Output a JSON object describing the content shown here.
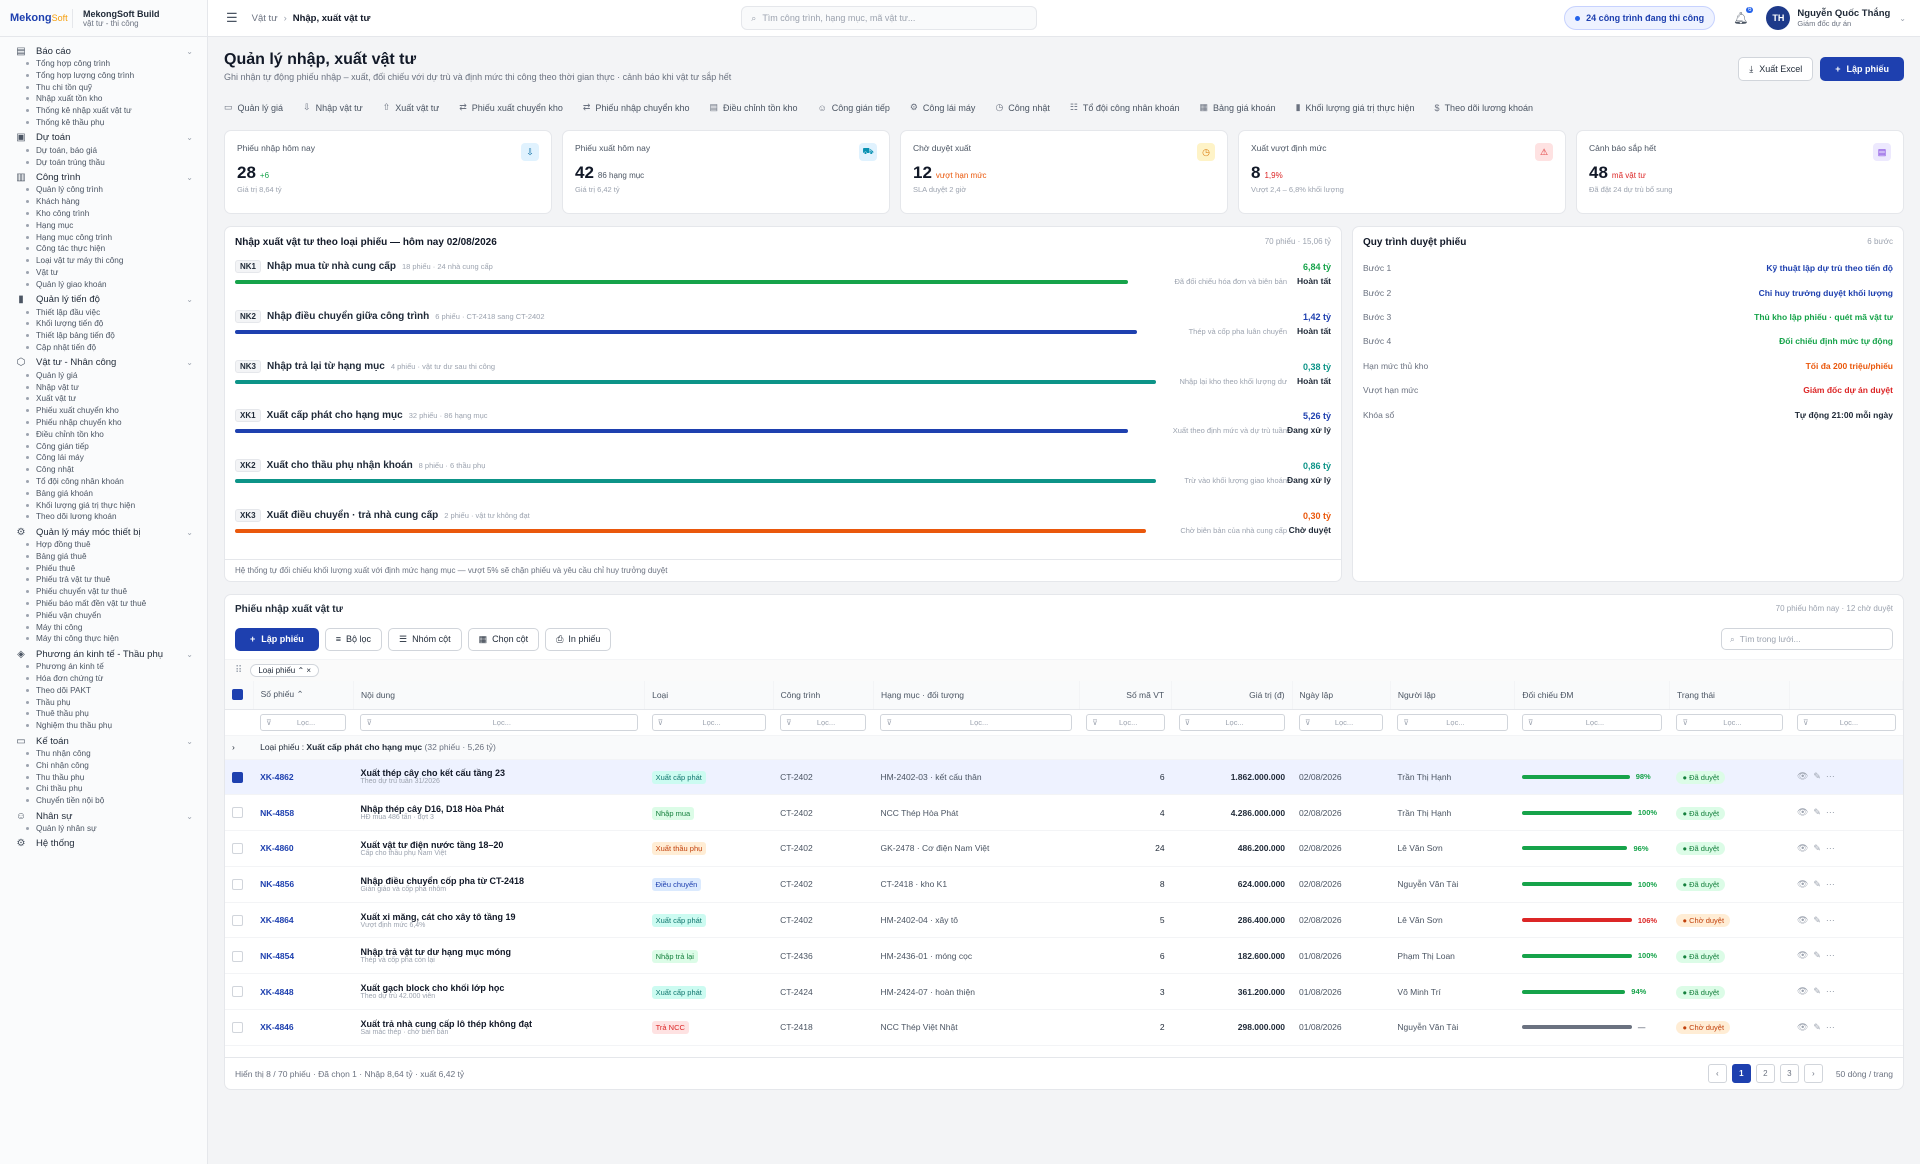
{
  "brand": {
    "logo_main": "Mekong",
    "logo_soft": "Soft",
    "name": "MekongSoft Build",
    "sub": "vật tư - thi công"
  },
  "colors": {
    "primary": "#1e40af",
    "green": "#16a34a",
    "blue": "#1e40af",
    "teal": "#0d9488",
    "orange": "#ea580c",
    "red": "#dc2626",
    "gray": "#6b7280"
  },
  "sidebar": [
    {
      "icon": "report-icon",
      "label": "Báo cáo",
      "items": [
        "Tổng hợp công trình",
        "Tổng hợp lượng công trình",
        "Thu chi tồn quỹ",
        "Nhập xuất tồn kho",
        "Thống kê nhập xuất vật tư",
        "Thống kê thầu phụ"
      ]
    },
    {
      "icon": "estimate-icon",
      "label": "Dự toán",
      "items": [
        "Dự toán, báo giá",
        "Dự toán trúng thầu"
      ]
    },
    {
      "icon": "project-icon",
      "label": "Công trình",
      "items": [
        "Quản lý công trình",
        "Khách hàng",
        "Kho công trình",
        "Hạng mục",
        "Hạng mục công trình",
        "Công tác thực hiện",
        "Loại vật tư máy thi công",
        "Vật tư",
        "Quản lý giao khoán"
      ]
    },
    {
      "icon": "progress-icon",
      "label": "Quản lý tiến độ",
      "items": [
        "Thiết lập đầu việc",
        "Khối lượng tiến độ",
        "Thiết lập bảng tiến độ",
        "Cập nhật tiến độ"
      ]
    },
    {
      "icon": "material-icon",
      "label": "Vật tư - Nhân công",
      "items": [
        "Quản lý giá",
        "Nhập vật tư",
        "Xuất vật tư",
        "Phiếu xuất chuyển kho",
        "Phiếu nhập chuyển kho",
        "Điều chỉnh tồn kho",
        "Công gián tiếp",
        "Công lái máy",
        "Công nhật",
        "Tổ đội công nhân khoán",
        "Bảng giá khoán",
        "Khối lượng giá trị thực hiện",
        "Theo dõi lương khoán"
      ]
    },
    {
      "icon": "machine-icon",
      "label": "Quản lý máy móc thiết bị",
      "items": [
        "Hợp đồng thuê",
        "Bảng giá thuê",
        "Phiếu thuê",
        "Phiếu trả vật tư thuê",
        "Phiếu chuyển vật tư thuê",
        "Phiếu báo mất đền vật tư thuê",
        "Phiếu vận chuyển",
        "Máy thi công",
        "Máy thi công thực hiện"
      ]
    },
    {
      "icon": "tag-icon",
      "label": "Phương án kinh tế - Thầu phụ",
      "items": [
        "Phương án kinh tế",
        "Hóa đơn chứng từ",
        "Theo dõi PAKT",
        "Thầu phụ",
        "Thuê thầu phụ",
        "Nghiệm thu thầu phụ"
      ]
    },
    {
      "icon": "money-icon",
      "label": "Kế toán",
      "items": [
        "Thu nhận công",
        "Chi nhận công",
        "Thu thầu phụ",
        "Chi thầu phụ",
        "Chuyển tiền nội bộ"
      ]
    },
    {
      "icon": "people-icon",
      "label": "Nhân sự",
      "items": [
        "Quản lý nhân sự"
      ]
    },
    {
      "icon": "gear-icon",
      "label": "Hệ thống",
      "items": []
    }
  ],
  "topbar": {
    "crumb1": "Vật tư",
    "crumb2": "Nhập, xuất vật tư",
    "search_placeholder": "Tìm công trình, hạng mục, mã vật tư...",
    "pill": "24 công trình đang thi công",
    "bell_count": "6",
    "avatar": "TH",
    "user_name": "Nguyễn Quốc Thắng",
    "user_role": "Giám đốc dự án"
  },
  "page": {
    "title": "Quản lý nhập, xuất vật tư",
    "subtitle": "Ghi nhận tự động phiếu nhập – xuất, đối chiếu với dự trù và định mức thi công theo thời gian thực · cảnh báo khi vật tư sắp hết",
    "export": "Xuất Excel",
    "create": "Lập phiếu"
  },
  "tabs": [
    "Quản lý giá",
    "Nhập vật tư",
    "Xuất vật tư",
    "Phiếu xuất chuyển kho",
    "Phiếu nhập chuyển kho",
    "Điều chỉnh tồn kho",
    "Công gián tiếp",
    "Công lái máy",
    "Công nhật",
    "Tổ đội công nhân khoán",
    "Bảng giá khoán",
    "Khối lượng giá trị thực hiện",
    "Theo dõi lương khoán"
  ],
  "kpis": [
    {
      "label": "Phiếu nhập hôm nay",
      "value": "28",
      "delta": "+6",
      "delta_color": "#16a34a",
      "note": "Giá trị 8,64 tỷ",
      "icon": "inbox-icon",
      "icon_bg": "#e0f2fe",
      "icon_color": "#0369a1"
    },
    {
      "label": "Phiếu xuất hôm nay",
      "value": "42",
      "delta": "86 hạng mục",
      "delta_color": "#4b5563",
      "note": "Giá trị 6,42 tỷ",
      "icon": "truck-icon",
      "icon_bg": "#e0f2fe",
      "icon_color": "#0891b2"
    },
    {
      "label": "Chờ duyệt xuất",
      "value": "12",
      "delta": "vượt hạn mức",
      "delta_color": "#ea580c",
      "note": "SLA duyệt 2 giờ",
      "icon": "clock-icon",
      "icon_bg": "#fef3c7",
      "icon_color": "#d97706"
    },
    {
      "label": "Xuất vượt định mức",
      "value": "8",
      "delta": "1,9%",
      "delta_color": "#dc2626",
      "note": "Vượt 2,4 – 6,8% khối lượng",
      "icon": "warning-icon",
      "icon_bg": "#fee2e2",
      "icon_color": "#dc2626"
    },
    {
      "label": "Cảnh báo sắp hết",
      "value": "48",
      "delta": "mã vật tư",
      "delta_color": "#dc2626",
      "note": "Đã đặt 24 dự trù bổ sung",
      "icon": "doc-icon",
      "icon_bg": "#ede9fe",
      "icon_color": "#6d28d9"
    }
  ],
  "flow": {
    "title": "Nhập xuất vật tư theo loại phiếu — hôm nay 02/08/2026",
    "meta": "70 phiếu · 15,06 tỷ",
    "footer": "Hệ thống tự đối chiếu khối lượng xuất với định mức hạng mục — vượt 5% sẽ chặn phiếu và yêu cầu chỉ huy trưởng duyệt",
    "items": [
      {
        "code": "NK1",
        "name": "Nhập mua từ nhà cung cấp",
        "meta": "18 phiếu · 24 nhà cung cấp",
        "value": "6,84 tỷ",
        "color": "#16a34a",
        "fill": 0.96,
        "note": "Đã đối chiếu hóa đơn và biên bản",
        "status": "Hoàn tất"
      },
      {
        "code": "NK2",
        "name": "Nhập điều chuyển giữa công trình",
        "meta": "6 phiếu · CT-2418 sang CT-2402",
        "value": "1,42 tỷ",
        "color": "#1e40af",
        "fill": 0.97,
        "note": "Thép và cốp pha luân chuyển",
        "status": "Hoàn tất"
      },
      {
        "code": "NK3",
        "name": "Nhập trả lại từ hạng mục",
        "meta": "4 phiếu · vật tư dư sau thi công",
        "value": "0,38 tỷ",
        "color": "#0d9488",
        "fill": 0.99,
        "note": "Nhập lại kho theo khối lượng dư",
        "status": "Hoàn tất"
      },
      {
        "code": "XK1",
        "name": "Xuất cấp phát cho hạng mục",
        "meta": "32 phiếu · 86 hạng mục",
        "value": "5,26 tỷ",
        "color": "#1e40af",
        "fill": 0.96,
        "note": "Xuất theo định mức và dự trù tuần",
        "status": "Đang xử lý"
      },
      {
        "code": "XK2",
        "name": "Xuất cho thầu phụ nhận khoán",
        "meta": "8 phiếu · 6 thầu phụ",
        "value": "0,86 tỷ",
        "color": "#0d9488",
        "fill": 0.99,
        "note": "Trừ vào khối lượng giao khoán",
        "status": "Đang xử lý"
      },
      {
        "code": "XK3",
        "name": "Xuất điều chuyển · trả nhà cung cấp",
        "meta": "2 phiếu · vật tư không đạt",
        "value": "0,30 tỷ",
        "color": "#ea580c",
        "fill": 0.98,
        "note": "Chờ biên bản của nhà cung cấp",
        "status": "Chờ duyệt"
      }
    ]
  },
  "process": {
    "title": "Quy trình duyệt phiếu",
    "meta": "6 bước",
    "rows": [
      {
        "k": "Bước 1",
        "v": "Kỹ thuật lập dự trù theo tiến độ",
        "c": "#1e40af"
      },
      {
        "k": "Bước 2",
        "v": "Chỉ huy trưởng duyệt khối lượng",
        "c": "#1e40af"
      },
      {
        "k": "Bước 3",
        "v": "Thủ kho lập phiếu · quét mã vật tư",
        "c": "#16a34a"
      },
      {
        "k": "Bước 4",
        "v": "Đối chiếu định mức tự động",
        "c": "#16a34a"
      },
      {
        "k": "Hạn mức thủ kho",
        "v": "Tối đa 200 triệu/phiếu",
        "c": "#ea580c"
      },
      {
        "k": "Vượt hạn mức",
        "v": "Giám đốc dự án duyệt",
        "c": "#dc2626"
      },
      {
        "k": "Khóa sổ",
        "v": "Tự động 21:00 mỗi ngày",
        "c": "#1f2937"
      }
    ]
  },
  "grid": {
    "title": "Phiếu nhập xuất vật tư",
    "meta": "70 phiếu hôm nay · 12 chờ duyệt",
    "create": "Lập phiếu",
    "filter": "Bộ lọc",
    "group": "Nhóm cột",
    "columns_btn": "Chọn cột",
    "print": "In phiếu",
    "search": "Tìm trong lưới...",
    "chip": "Loại phiếu",
    "headers": [
      "Số phiếu",
      "Nội dung",
      "Loại",
      "Công trình",
      "Hạng mục · đối tượng",
      "Số mã VT",
      "Giá trị (đ)",
      "Ngày lập",
      "Người lập",
      "Đối chiếu ĐM",
      "Trạng thái"
    ],
    "filter_ph": "Lọc...",
    "group_label": "Loại phiếu",
    "group_value": "Xuất cấp phát cho hạng mục",
    "group_count": "(32 phiếu · 5,26 tỷ)",
    "rows": [
      {
        "no": "XK-4862",
        "t1": "Xuất thép cây cho kết cấu tầng 23",
        "t2": "Theo dự trù tuần 31/2026",
        "type": "Xuất cấp phát",
        "tbg": "#ccfbf1",
        "tc": "#0f766e",
        "ct": "CT-2402",
        "hm": "HM-2402-03 · kết cấu thân",
        "n": "6",
        "v": "1.862.000.000",
        "d": "02/08/2026",
        "u": "Trần Thị Hạnh",
        "p": 0.98,
        "pt": "98%",
        "pc": "#16a34a",
        "s": "Đã duyệt",
        "sbg": "#dcfce7",
        "sc": "#15803d",
        "sel": true
      },
      {
        "no": "NK-4858",
        "t1": "Nhập thép cây D16, D18 Hòa Phát",
        "t2": "HĐ mua 486 tấn · đợt 3",
        "type": "Nhập mua",
        "tbg": "#dcfce7",
        "tc": "#15803d",
        "ct": "CT-2402",
        "hm": "NCC Thép Hòa Phát",
        "n": "4",
        "v": "4.286.000.000",
        "d": "02/08/2026",
        "u": "Trần Thị Hạnh",
        "p": 1,
        "pt": "100%",
        "pc": "#16a34a",
        "s": "Đã duyệt",
        "sbg": "#dcfce7",
        "sc": "#15803d",
        "sel": false
      },
      {
        "no": "XK-4860",
        "t1": "Xuất vật tư điện nước tầng 18–20",
        "t2": "Cấp cho thầu phụ Nam Việt",
        "type": "Xuất thầu phụ",
        "tbg": "#ffedd5",
        "tc": "#c2410c",
        "ct": "CT-2402",
        "hm": "GK-2478 · Cơ điện Nam Việt",
        "n": "24",
        "v": "486.200.000",
        "d": "02/08/2026",
        "u": "Lê Văn Sơn",
        "p": 0.96,
        "pt": "96%",
        "pc": "#16a34a",
        "s": "Đã duyệt",
        "sbg": "#dcfce7",
        "sc": "#15803d",
        "sel": false
      },
      {
        "no": "NK-4856",
        "t1": "Nhập điều chuyển cốp pha từ CT-2418",
        "t2": "Giàn giáo và cốp pha nhôm",
        "type": "Điều chuyển",
        "tbg": "#dbeafe",
        "tc": "#1e40af",
        "ct": "CT-2402",
        "hm": "CT-2418 · kho K1",
        "n": "8",
        "v": "624.000.000",
        "d": "02/08/2026",
        "u": "Nguyễn Văn Tài",
        "p": 1,
        "pt": "100%",
        "pc": "#16a34a",
        "s": "Đã duyệt",
        "sbg": "#dcfce7",
        "sc": "#15803d",
        "sel": false
      },
      {
        "no": "XK-4864",
        "t1": "Xuất xi măng, cát cho xây tô tầng 19",
        "t2": "Vượt định mức 6,4%",
        "type": "Xuất cấp phát",
        "tbg": "#ccfbf1",
        "tc": "#0f766e",
        "ct": "CT-2402",
        "hm": "HM-2402-04 · xây tô",
        "n": "5",
        "v": "286.400.000",
        "d": "02/08/2026",
        "u": "Lê Văn Sơn",
        "p": 1,
        "pt": "106%",
        "pc": "#dc2626",
        "s": "Chờ duyệt",
        "sbg": "#ffedd5",
        "sc": "#c2410c",
        "sel": false
      },
      {
        "no": "NK-4854",
        "t1": "Nhập trả vật tư dư hạng mục móng",
        "t2": "Thép và cốp pha còn lại",
        "type": "Nhập trả lại",
        "tbg": "#dcfce7",
        "tc": "#15803d",
        "ct": "CT-2436",
        "hm": "HM-2436-01 · móng cọc",
        "n": "6",
        "v": "182.600.000",
        "d": "01/08/2026",
        "u": "Phạm Thị Loan",
        "p": 1,
        "pt": "100%",
        "pc": "#16a34a",
        "s": "Đã duyệt",
        "sbg": "#dcfce7",
        "sc": "#15803d",
        "sel": false
      },
      {
        "no": "XK-4848",
        "t1": "Xuất gạch block cho khối lớp học",
        "t2": "Theo dự trù 42.000 viên",
        "type": "Xuất cấp phát",
        "tbg": "#ccfbf1",
        "tc": "#0f766e",
        "ct": "CT-2424",
        "hm": "HM-2424-07 · hoàn thiện",
        "n": "3",
        "v": "361.200.000",
        "d": "01/08/2026",
        "u": "Võ Minh Trí",
        "p": 0.94,
        "pt": "94%",
        "pc": "#16a34a",
        "s": "Đã duyệt",
        "sbg": "#dcfce7",
        "sc": "#15803d",
        "sel": false
      },
      {
        "no": "XK-4846",
        "t1": "Xuất trả nhà cung cấp lô thép không đạt",
        "t2": "Sai mác thép · chờ biên bản",
        "type": "Trả NCC",
        "tbg": "#fee2e2",
        "tc": "#dc2626",
        "ct": "CT-2418",
        "hm": "NCC Thép Việt Nhật",
        "n": "2",
        "v": "298.000.000",
        "d": "01/08/2026",
        "u": "Nguyễn Văn Tài",
        "p": 1,
        "pt": "—",
        "pc": "#6b7280",
        "s": "Chờ duyệt",
        "sbg": "#ffedd5",
        "sc": "#c2410c",
        "sel": false
      }
    ],
    "footer": "Hiển thị 8 / 70 phiếu · Đã chọn 1 · Nhập 8,64 tỷ · xuất 6,42 tỷ",
    "pages": [
      "1",
      "2",
      "3"
    ],
    "per_page": "50 dòng / trang"
  }
}
